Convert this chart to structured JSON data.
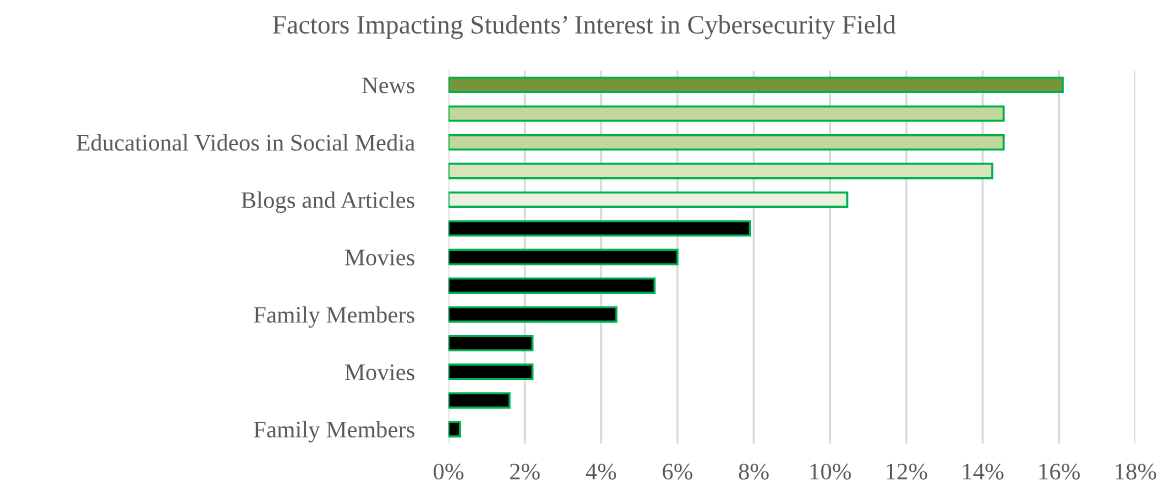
{
  "chart_data": {
    "type": "bar",
    "orientation": "horizontal",
    "title": "Factors Impacting Students’ Interest in Cybersecurity Field",
    "categories": [
      "News",
      null,
      "Educational Videos in Social Media",
      null,
      "Blogs and Articles",
      null,
      "Movies",
      null,
      "Family Members",
      null,
      "Movies",
      null,
      "Family Members"
    ],
    "values": [
      16.1,
      14.55,
      14.55,
      14.25,
      10.45,
      7.9,
      6.0,
      5.4,
      4.4,
      2.2,
      2.2,
      1.6,
      0.3
    ],
    "colors": [
      "#77933c",
      "#c4d79b",
      "#c4d79b",
      "#d8e4bc",
      "#ebf1de",
      "#000000",
      "#000000",
      "#000000",
      "#000000",
      "#000000",
      "#000000",
      "#000000",
      "#000000"
    ],
    "xlim": [
      0,
      18
    ],
    "xticks": [
      {
        "value": 0,
        "label": "0%"
      },
      {
        "value": 2,
        "label": "2%"
      },
      {
        "value": 4,
        "label": "4%"
      },
      {
        "value": 6,
        "label": "6%"
      },
      {
        "value": 8,
        "label": "8%"
      },
      {
        "value": 10,
        "label": "10%"
      },
      {
        "value": 12,
        "label": "12%"
      },
      {
        "value": 14,
        "label": "14%"
      },
      {
        "value": 16,
        "label": "16%"
      },
      {
        "value": 18,
        "label": "18%"
      }
    ],
    "grid": "x"
  }
}
